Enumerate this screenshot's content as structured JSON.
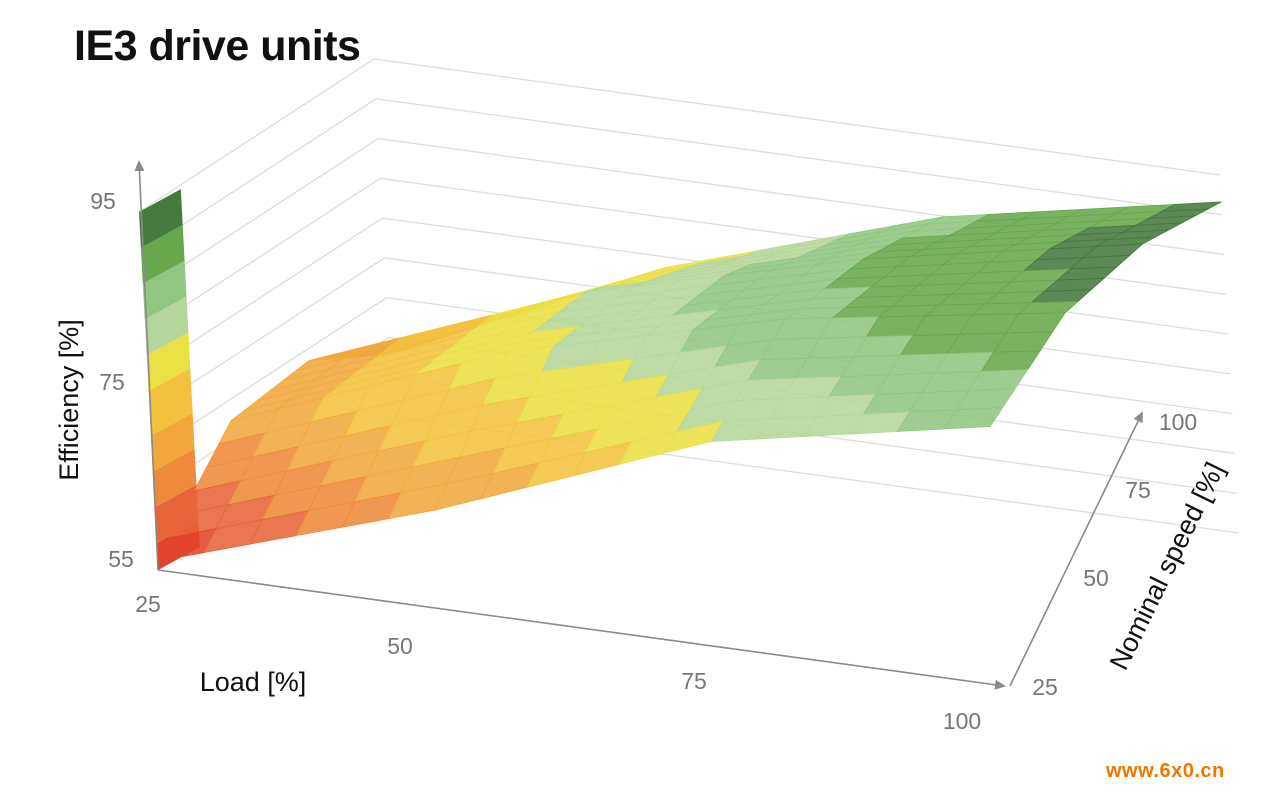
{
  "title": "IE3 drive units",
  "watermark": "www.6x0.cn",
  "chart_data": {
    "type": "surface",
    "title": "IE3 drive units",
    "xlabel": "Load [%]",
    "ylabel": "Nominal speed [%]",
    "zlabel": "Efficiency [%]",
    "x_ticks": [
      "25",
      "50",
      "75",
      "100"
    ],
    "y_ticks": [
      "25",
      "50",
      "75",
      "100"
    ],
    "z_ticks": [
      "55",
      "75",
      "95"
    ],
    "x": [
      25,
      50,
      75,
      100
    ],
    "y": [
      25,
      50,
      75,
      100
    ],
    "z_range": [
      55,
      95
    ],
    "z": [
      [
        56,
        66,
        78,
        84
      ],
      [
        66,
        78,
        86,
        91
      ],
      [
        67,
        79,
        87,
        93
      ],
      [
        62,
        76,
        86,
        92
      ]
    ],
    "color_bands": [
      {
        "min": 55,
        "max": 58,
        "color": "#e0452c"
      },
      {
        "min": 58,
        "max": 62,
        "color": "#e8643a"
      },
      {
        "min": 62,
        "max": 66,
        "color": "#ee8a3a"
      },
      {
        "min": 66,
        "max": 70,
        "color": "#f0a83c"
      },
      {
        "min": 70,
        "max": 75,
        "color": "#f2c23e"
      },
      {
        "min": 75,
        "max": 79,
        "color": "#ebe044"
      },
      {
        "min": 79,
        "max": 83,
        "color": "#b5d69a"
      },
      {
        "min": 83,
        "max": 87,
        "color": "#8fc781"
      },
      {
        "min": 87,
        "max": 91,
        "color": "#67a84c"
      },
      {
        "min": 91,
        "max": 95,
        "color": "#447a3c"
      }
    ],
    "grid": true
  }
}
